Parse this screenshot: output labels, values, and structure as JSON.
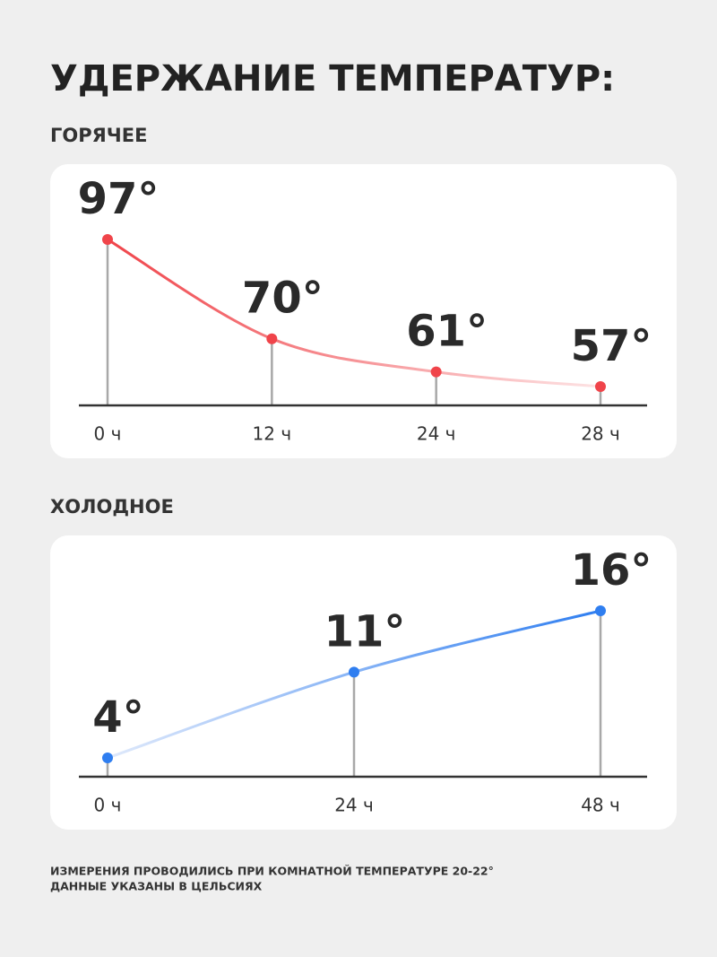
{
  "title": "УДЕРЖАНИЕ ТЕМПЕРАТУР:",
  "chart_data": [
    {
      "type": "line",
      "title": "ГОРЯЧЕЕ",
      "categories": [
        "0 ч",
        "12 ч",
        "24 ч",
        "28 ч"
      ],
      "values": [
        97,
        70,
        61,
        57
      ],
      "value_labels": [
        "97°",
        "70°",
        "61°",
        "57°"
      ],
      "color": "#f0444a",
      "fade_color": "#fde3e4"
    },
    {
      "type": "line",
      "title": "ХОЛОДНОЕ",
      "categories": [
        "0 ч",
        "24 ч",
        "48 ч"
      ],
      "values": [
        4,
        11,
        16
      ],
      "value_labels": [
        "4°",
        "11°",
        "16°"
      ],
      "color": "#2f7ef0",
      "fade_color": "#dfe9fb"
    }
  ],
  "footnotes": [
    "ИЗМЕРЕНИЯ ПРОВОДИЛИСЬ ПРИ КОМНАТНОЙ ТЕМПЕРАТУРЕ 20-22°",
    "ДАННЫЕ УКАЗАНЫ В ЦЕЛЬСИЯХ"
  ]
}
